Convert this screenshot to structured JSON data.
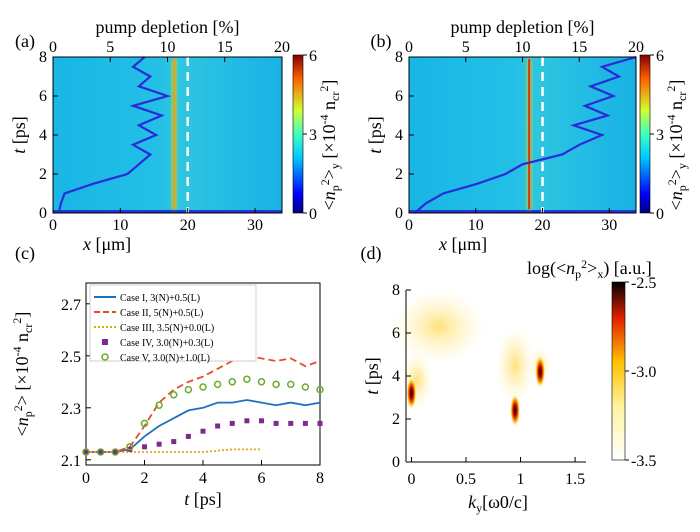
{
  "chart_data": [
    {
      "panel": "(a)",
      "type": "heatmap",
      "xlabel_prefix": "x",
      "xlabel_unit": "[μm]",
      "ylabel_prefix": "t",
      "ylabel_unit": "[ps]",
      "top_xlabel": "pump depletion [%]",
      "x_ticks": [
        "0",
        "10",
        "20",
        "30"
      ],
      "y_ticks": [
        "0",
        "2",
        "4",
        "6",
        "8"
      ],
      "top_ticks": [
        "0",
        "5",
        "10",
        "15",
        "20"
      ],
      "xlim": [
        0,
        34
      ],
      "ylim": [
        0,
        8
      ],
      "top_xlim": [
        0,
        20
      ],
      "colorbar_ticks": [
        "6",
        "3",
        "0"
      ],
      "colorbar_label": "<n_p^2>_y [×10^-4 n_cr^2]",
      "dashed_line_x": 20,
      "bright_streak_x": 18,
      "pump_depletion_curve": {
        "t": [
          0,
          0.5,
          1,
          1.5,
          2,
          2.5,
          3,
          3.5,
          4,
          4.5,
          5,
          5.5,
          6,
          6.5,
          7,
          7.5,
          8
        ],
        "depletion": [
          0.5,
          0.7,
          1.0,
          3.5,
          6.5,
          7.5,
          8.5,
          7.0,
          9.0,
          7.5,
          9.5,
          7.0,
          10.0,
          7.5,
          8.5,
          7.0,
          8.0
        ]
      }
    },
    {
      "panel": "(b)",
      "type": "heatmap",
      "xlabel_prefix": "x",
      "xlabel_unit": "[μm]",
      "ylabel_prefix": "t",
      "ylabel_unit": "[ps]",
      "top_xlabel": "pump depletion [%]",
      "x_ticks": [
        "0",
        "10",
        "20",
        "30"
      ],
      "y_ticks": [
        "0",
        "2",
        "4",
        "6",
        "8"
      ],
      "top_ticks": [
        "0",
        "5",
        "10",
        "15",
        "20"
      ],
      "xlim": [
        0,
        34
      ],
      "ylim": [
        0,
        8
      ],
      "top_xlim": [
        0,
        20
      ],
      "colorbar_ticks": [
        "6",
        "3",
        "0"
      ],
      "colorbar_label": "<n_p^2>_y [×10^-4 n_cr^2]",
      "dashed_line_x": 20,
      "bright_streak_x": 18,
      "pump_depletion_curve": {
        "t": [
          0,
          0.5,
          1,
          1.5,
          2,
          2.5,
          3,
          3.5,
          4,
          4.5,
          5,
          5.5,
          6,
          6.5,
          7,
          7.5,
          8
        ],
        "depletion": [
          0.5,
          1.5,
          3.0,
          6.0,
          8.5,
          10.0,
          13.5,
          15.0,
          17.0,
          14.5,
          17.5,
          15.5,
          18.0,
          16.0,
          18.5,
          17.0,
          20.0
        ]
      }
    },
    {
      "panel": "(c)",
      "type": "line",
      "xlabel_prefix": "t",
      "xlabel_unit": "[ps]",
      "ylabel": "<n_p^2> [×10^-4 n_cr^2]",
      "x_ticks": [
        "0",
        "2",
        "4",
        "6",
        "8"
      ],
      "y_ticks": [
        "2.1",
        "2.3",
        "2.5",
        "2.7"
      ],
      "xlim": [
        0,
        8
      ],
      "ylim": [
        2.08,
        2.78
      ],
      "series": [
        {
          "name": "Case I, 3(N)+0.5(L)",
          "color": "#1f6fc0",
          "style": "solid",
          "x": [
            0,
            0.5,
            1,
            1.5,
            2,
            2.5,
            3,
            3.5,
            4,
            4.5,
            5,
            5.5,
            6,
            6.5,
            7,
            7.5,
            8
          ],
          "y": [
            2.13,
            2.13,
            2.13,
            2.14,
            2.19,
            2.23,
            2.26,
            2.29,
            2.3,
            2.32,
            2.32,
            2.33,
            2.32,
            2.31,
            2.32,
            2.31,
            2.32
          ]
        },
        {
          "name": "Case II, 5(N)+0.5(L)",
          "color": "#e2502a",
          "style": "dashed",
          "x": [
            0,
            0.5,
            1,
            1.5,
            2,
            2.5,
            3,
            3.5,
            4,
            4.5,
            5,
            5.5,
            6,
            6.5,
            7,
            7.5,
            8
          ],
          "y": [
            2.13,
            2.13,
            2.13,
            2.15,
            2.23,
            2.32,
            2.37,
            2.4,
            2.42,
            2.45,
            2.48,
            2.5,
            2.49,
            2.48,
            2.49,
            2.46,
            2.48
          ]
        },
        {
          "name": "Case III, 3.5(N)+0.0(L)",
          "color": "#e8a21a",
          "style": "dotted",
          "x": [
            0,
            1,
            2,
            3,
            4,
            5,
            6
          ],
          "y": [
            2.13,
            2.13,
            2.13,
            2.13,
            2.13,
            2.14,
            2.14
          ]
        },
        {
          "name": "Case IV, 3.0(N)+0.3(L)",
          "color": "#7e2a8e",
          "style": "square",
          "x": [
            0,
            0.5,
            1,
            1.5,
            2,
            2.5,
            3,
            3.5,
            4,
            4.5,
            5,
            5.5,
            6,
            6.5,
            7,
            7.5,
            8
          ],
          "y": [
            2.13,
            2.13,
            2.13,
            2.14,
            2.15,
            2.16,
            2.17,
            2.19,
            2.21,
            2.23,
            2.24,
            2.25,
            2.25,
            2.24,
            2.24,
            2.24,
            2.24
          ]
        },
        {
          "name": "Case V, 3.0(N)+1.0(L)",
          "color": "#6aaa2c",
          "style": "circle",
          "x": [
            0,
            0.5,
            1,
            1.5,
            2,
            2.5,
            3,
            3.5,
            4,
            4.5,
            5,
            5.5,
            6,
            6.5,
            7,
            7.5,
            8
          ],
          "y": [
            2.13,
            2.13,
            2.13,
            2.15,
            2.24,
            2.31,
            2.35,
            2.37,
            2.38,
            2.39,
            2.4,
            2.41,
            2.4,
            2.39,
            2.39,
            2.38,
            2.37
          ]
        }
      ]
    },
    {
      "panel": "(d)",
      "type": "heatmap",
      "xlabel_prefix": "k",
      "xlabel_sub": "y",
      "xlabel_unit": "[ω0/c]",
      "ylabel_prefix": "t",
      "ylabel_unit": "[ps]",
      "x_ticks": [
        "0",
        "0.5",
        "1",
        "1.5"
      ],
      "y_ticks": [
        "0",
        "2",
        "4",
        "6",
        "8"
      ],
      "xlim": [
        -0.05,
        1.6
      ],
      "ylim": [
        0,
        8
      ],
      "colorbar_title": "log(<n_p^2>_x) [a.u.]",
      "colorbar_ticks": [
        "-2.5",
        "-3.0",
        "-3.5"
      ],
      "hot_spots": [
        {
          "ky": 0.0,
          "t": 3.2,
          "level": -2.5
        },
        {
          "ky": 0.95,
          "t": 2.4,
          "level": -2.5
        },
        {
          "ky": 1.18,
          "t": 4.2,
          "level": -2.8
        }
      ]
    }
  ]
}
